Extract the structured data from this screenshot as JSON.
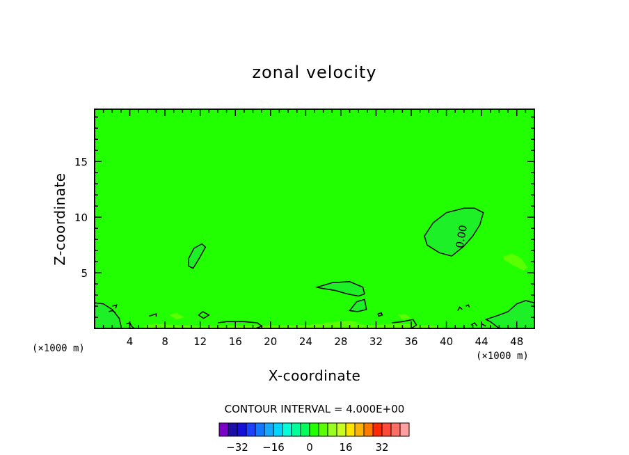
{
  "chart_data": {
    "type": "heatmap",
    "title": "zonal velocity",
    "xlabel": "X-coordinate",
    "ylabel": "Z-coordinate",
    "x_unit": "(×1000 m)",
    "xlim": [
      0,
      50
    ],
    "ylim": [
      0,
      19.7
    ],
    "x_ticks": [
      4,
      8,
      12,
      16,
      20,
      24,
      28,
      32,
      36,
      40,
      44,
      48
    ],
    "y_ticks": [
      5,
      10,
      15
    ],
    "background_level_color": "#22ff00",
    "contour_label": "0.00",
    "contour_interval_text": "CONTOUR INTERVAL = 4.000E+00",
    "colorbar": {
      "colors": [
        "#7a00c8",
        "#1c0fa8",
        "#1410d8",
        "#1c40ff",
        "#1477ff",
        "#14a8ff",
        "#00d4ff",
        "#00ffd8",
        "#00ff9a",
        "#00ff5a",
        "#22ff00",
        "#5aff00",
        "#9aff20",
        "#c8ff20",
        "#ffe400",
        "#ffb400",
        "#ff7a00",
        "#ff2800",
        "#ff4a3a",
        "#ff6e64",
        "#ffa0a0"
      ],
      "tick_labels": [
        "-32",
        "-16",
        "0",
        "16",
        "32"
      ],
      "tick_values": [
        -32,
        -16,
        0,
        16,
        32
      ]
    },
    "regions": [
      {
        "name": "upper-right-zero-zone",
        "color": "#1ef028",
        "contour": true,
        "points": [
          [
            37.5,
            8.3
          ],
          [
            38.5,
            9.5
          ],
          [
            40,
            10.4
          ],
          [
            42,
            10.8
          ],
          [
            43.2,
            10.8
          ],
          [
            44.2,
            10.4
          ],
          [
            43.8,
            9.3
          ],
          [
            43,
            8.3
          ],
          [
            42,
            7.4
          ],
          [
            40.6,
            6.5
          ],
          [
            39.2,
            6.8
          ],
          [
            37.8,
            7.5
          ]
        ]
      },
      {
        "name": "mid-left-lobe",
        "color": "#1ef028",
        "contour": true,
        "points": [
          [
            10.7,
            6.3
          ],
          [
            11.3,
            7.2
          ],
          [
            12.2,
            7.6
          ],
          [
            12.6,
            7.3
          ],
          [
            11.9,
            6.3
          ],
          [
            11.2,
            5.4
          ],
          [
            10.7,
            5.6
          ]
        ]
      },
      {
        "name": "wedge-28",
        "color": "#1ef028",
        "contour": true,
        "points": [
          [
            25.3,
            3.7
          ],
          [
            27,
            4.1
          ],
          [
            29,
            4.2
          ],
          [
            30.5,
            3.7
          ],
          [
            30.7,
            3.1
          ],
          [
            30,
            2.9
          ],
          [
            28.7,
            3.1
          ],
          [
            27.4,
            3.4
          ],
          [
            25.8,
            3.6
          ]
        ]
      },
      {
        "name": "blob-30",
        "color": "#1ef028",
        "contour": true,
        "points": [
          [
            29,
            1.6
          ],
          [
            29.8,
            2.4
          ],
          [
            30.7,
            2.6
          ],
          [
            30.9,
            1.7
          ],
          [
            29.9,
            1.5
          ]
        ]
      },
      {
        "name": "lower-left-zone",
        "color": "#1ef028",
        "contour": true,
        "points": [
          [
            0,
            0
          ],
          [
            0,
            2.3
          ],
          [
            1,
            2.2
          ],
          [
            2,
            1.7
          ],
          [
            2.8,
            0.9
          ],
          [
            3,
            0.2
          ],
          [
            3,
            0
          ]
        ]
      },
      {
        "name": "lower-right-zone",
        "color": "#1ef028",
        "contour": true,
        "points": [
          [
            44.5,
            0.8
          ],
          [
            46,
            1.2
          ],
          [
            47,
            1.5
          ],
          [
            48,
            2.2
          ],
          [
            49,
            2.5
          ],
          [
            50,
            2.3
          ],
          [
            50,
            0
          ],
          [
            46,
            0
          ],
          [
            45,
            0.6
          ]
        ]
      },
      {
        "name": "right-edge-lobe",
        "color": "#5aff00",
        "contour": false,
        "points": [
          [
            46.5,
            6.5
          ],
          [
            47.5,
            6.7
          ],
          [
            48.5,
            6.3
          ],
          [
            49.2,
            5.5
          ],
          [
            48.8,
            5.2
          ],
          [
            47.5,
            5.7
          ],
          [
            46.5,
            6.2
          ]
        ]
      },
      {
        "name": "bottom-band",
        "color": "#5aff00",
        "contour": false,
        "points": [
          [
            5.5,
            0
          ],
          [
            5.8,
            0.3
          ],
          [
            7,
            0.4
          ],
          [
            12,
            0.2
          ],
          [
            24,
            0.3
          ],
          [
            28,
            0.6
          ],
          [
            31,
            0.3
          ],
          [
            35,
            0.4
          ],
          [
            39,
            0.2
          ],
          [
            40,
            0
          ]
        ]
      }
    ],
    "line_contours": [
      [
        [
          11.8,
          1.2
        ],
        [
          12.3,
          1.5
        ],
        [
          13,
          1.2
        ],
        [
          12.4,
          0.9
        ],
        [
          11.8,
          1.2
        ]
      ],
      [
        [
          6.2,
          1.1
        ],
        [
          7,
          1.3
        ],
        [
          7,
          1.05
        ]
      ],
      [
        [
          14,
          0.5
        ],
        [
          15,
          0.6
        ],
        [
          17,
          0.6
        ],
        [
          18.5,
          0.5
        ],
        [
          19,
          0.2
        ],
        [
          18.3,
          0
        ]
      ],
      [
        [
          3.6,
          0.4
        ],
        [
          4,
          0.5
        ],
        [
          4.2,
          0.2
        ],
        [
          4.5,
          0
        ]
      ],
      [
        [
          33.8,
          0.5
        ],
        [
          35,
          0.6
        ],
        [
          36.2,
          0.8
        ],
        [
          36.6,
          0.3
        ],
        [
          36,
          0
        ]
      ],
      [
        [
          41.3,
          1.6
        ],
        [
          41.5,
          1.9
        ],
        [
          41.8,
          1.7
        ]
      ],
      [
        [
          42.2,
          2.0
        ],
        [
          42.5,
          2.1
        ],
        [
          42.6,
          1.9
        ]
      ],
      [
        [
          42.8,
          0.3
        ],
        [
          43.2,
          0.5
        ],
        [
          43.5,
          0.2
        ]
      ],
      [
        [
          44,
          0.4
        ],
        [
          44.5,
          0.2
        ]
      ],
      [
        [
          32.2,
          1.3
        ],
        [
          32.6,
          1.4
        ],
        [
          32.7,
          1.2
        ],
        [
          32.3,
          1.1
        ],
        [
          32.2,
          1.3
        ]
      ],
      [
        [
          1.6,
          1.5
        ],
        [
          2,
          1.6
        ],
        [
          2.4,
          1.4
        ]
      ],
      [
        [
          2,
          2
        ],
        [
          2.5,
          2.1
        ],
        [
          2.4,
          1.8
        ]
      ]
    ],
    "light_patches": [
      [
        [
          8.5,
          1.2
        ],
        [
          9.3,
          1.4
        ],
        [
          10.2,
          1.0
        ],
        [
          9.3,
          0.8
        ],
        [
          8.5,
          1.2
        ]
      ],
      [
        [
          34.5,
          1.2
        ],
        [
          35.3,
          1.3
        ],
        [
          36,
          0.9
        ],
        [
          35,
          0.8
        ],
        [
          34.5,
          1.2
        ]
      ],
      [
        [
          26,
          0.5
        ],
        [
          27.5,
          0.6
        ],
        [
          29,
          0.7
        ],
        [
          30.2,
          0.5
        ],
        [
          28,
          0.3
        ],
        [
          26,
          0.5
        ]
      ]
    ]
  }
}
